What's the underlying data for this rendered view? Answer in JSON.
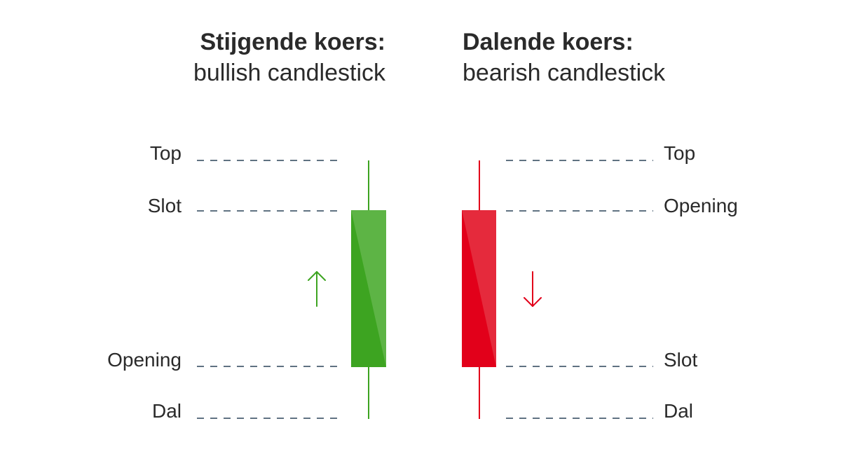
{
  "colors": {
    "bullish_dark": "#3da421",
    "bullish_light": "#5db445",
    "bearish_dark": "#e2001a",
    "bearish_light": "#e52a3c",
    "dash_line": "#2c4459",
    "text": "#2a2a2a"
  },
  "bullish": {
    "heading": "Stijgende koers:",
    "subheading": "bullish candlestick",
    "labels": {
      "top": "Top",
      "close": "Slot",
      "open": "Opening",
      "low": "Dal"
    },
    "arrow": "up-arrow-icon"
  },
  "bearish": {
    "heading": "Dalende koers:",
    "subheading": "bearish candlestick",
    "labels": {
      "top": "Top",
      "open": "Opening",
      "close": "Slot",
      "low": "Dal"
    },
    "arrow": "down-arrow-icon"
  }
}
